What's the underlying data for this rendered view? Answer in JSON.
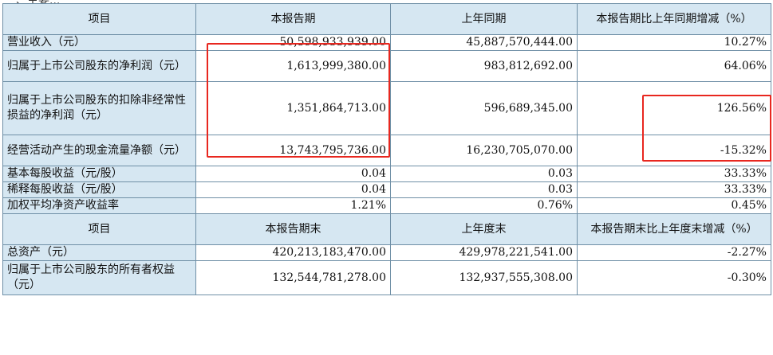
{
  "top_fragment": "一、主要...",
  "table": {
    "header1": [
      "项目",
      "本报告期",
      "上年同期",
      "本报告期比上年同期增减（%）"
    ],
    "rows1": [
      {
        "label": "营业收入（元）",
        "current": "50,598,933,939.00",
        "prior": "45,887,570,444.00",
        "change": "10.27%"
      },
      {
        "label": "归属于上市公司股东的净利润（元）",
        "current": "1,613,999,380.00",
        "prior": "983,812,692.00",
        "change": "64.06%"
      },
      {
        "label": "归属于上市公司股东的扣除非经常性损益的净利润（元）",
        "current": "1,351,864,713.00",
        "prior": "596,689,345.00",
        "change": "126.56%"
      },
      {
        "label": "经营活动产生的现金流量净额（元）",
        "current": "13,743,795,736.00",
        "prior": "16,230,705,070.00",
        "change": "-15.32%"
      },
      {
        "label": "基本每股收益（元/股）",
        "current": "0.04",
        "prior": "0.03",
        "change": "33.33%"
      },
      {
        "label": "稀释每股收益（元/股）",
        "current": "0.04",
        "prior": "0.03",
        "change": "33.33%"
      },
      {
        "label": "加权平均净资产收益率",
        "current": "1.21%",
        "prior": "0.76%",
        "change": "0.45%"
      }
    ],
    "header2": [
      "项目",
      "本报告期末",
      "上年度末",
      "本报告期末比上年度末增减（%）"
    ],
    "rows2": [
      {
        "label": "总资产（元）",
        "current": "420,213,183,470.00",
        "prior": "429,978,221,541.00",
        "change": "-2.27%"
      },
      {
        "label": "归属于上市公司股东的所有者权益（元）",
        "current": "132,544,781,278.00",
        "prior": "132,937,555,308.00",
        "change": "-0.30%"
      }
    ]
  },
  "highlight_color": "#e8271f"
}
